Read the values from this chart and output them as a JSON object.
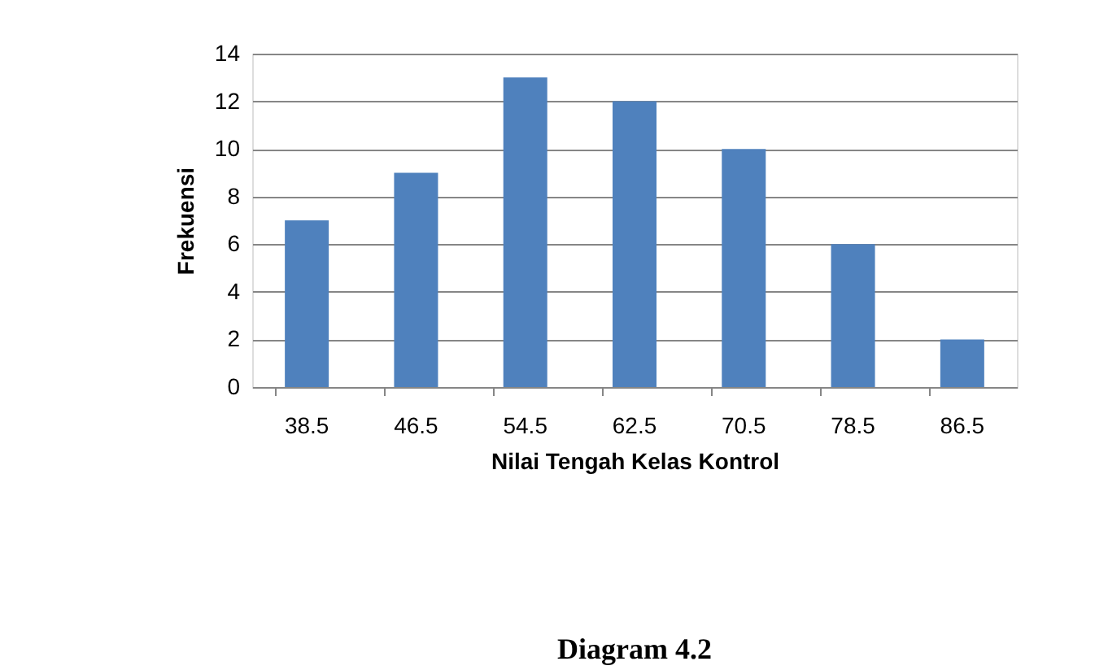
{
  "chart_data": {
    "type": "bar",
    "categories": [
      "38.5",
      "46.5",
      "54.5",
      "62.5",
      "70.5",
      "78.5",
      "86.5"
    ],
    "values": [
      7,
      9,
      13,
      12,
      10,
      6,
      2
    ],
    "color": "#4f81bd",
    "xlabel": "Nilai Tengah Kelas Kontrol",
    "ylabel": "Frekuensi",
    "ylim": [
      0,
      14
    ],
    "yticks": [
      0,
      2,
      4,
      6,
      8,
      10,
      12,
      14
    ],
    "grid": "y",
    "annotations": [
      "Diagram 4.2"
    ]
  }
}
